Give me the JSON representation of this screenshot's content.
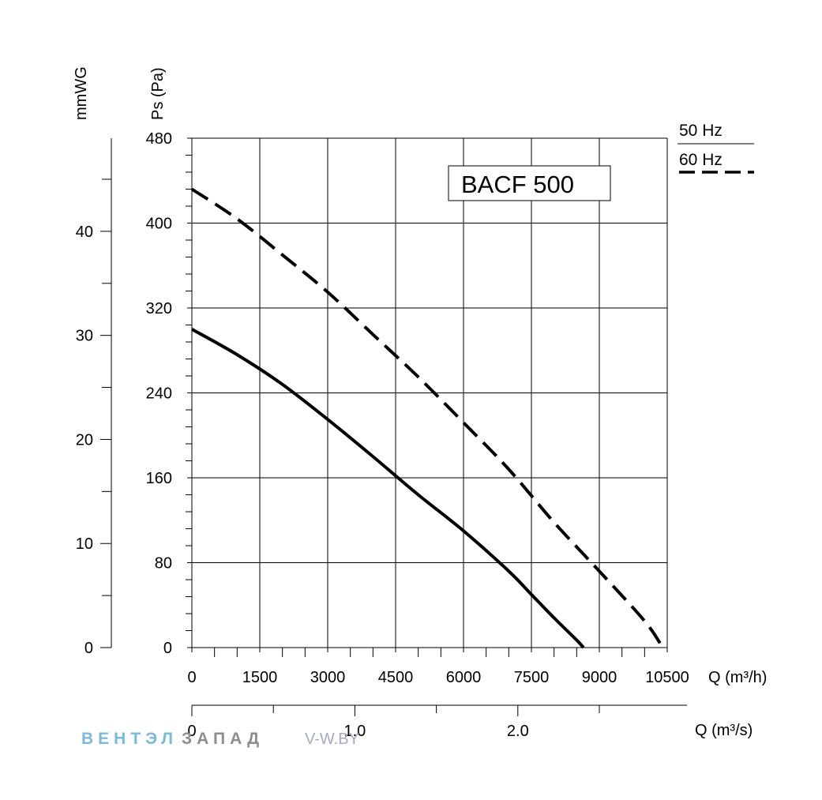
{
  "chart_data": {
    "type": "line",
    "title": "BACF 500",
    "xlabel": "Q (m³/h)",
    "xlabel_secondary": "Q (m³/s)",
    "ylabel": "Ps (Pa)",
    "ylabel_secondary": "mmWG",
    "xlim": [
      0,
      10500
    ],
    "ylim": [
      0,
      480
    ],
    "x_ticks": [
      0,
      1500,
      3000,
      4500,
      6000,
      7500,
      9000,
      10500
    ],
    "x_tick_labels": [
      "0",
      "1500",
      "3000",
      "4500",
      "6000",
      "7500",
      "9000",
      "10500"
    ],
    "y_ticks": [
      0,
      80,
      160,
      240,
      320,
      400,
      480
    ],
    "y_tick_labels": [
      "0",
      "80",
      "160",
      "240",
      "320",
      "400",
      "480"
    ],
    "secondary_x": {
      "ticks": [
        0,
        1.0,
        2.0
      ],
      "labels": [
        "0",
        "1.0",
        "2.0"
      ],
      "minor_ticks": [
        0.5,
        1.5,
        2.5
      ]
    },
    "secondary_y": {
      "ticks": [
        0,
        10,
        20,
        30,
        40
      ],
      "labels": [
        "0",
        "10",
        "20",
        "30",
        "40"
      ],
      "minor_ticks": [
        5,
        15,
        25,
        35,
        45
      ]
    },
    "grid": true,
    "legend_position": "top-right",
    "series": [
      {
        "name": "50 Hz",
        "style": "solid",
        "x": [
          0,
          1000,
          2000,
          3000,
          4000,
          5000,
          6000,
          7000,
          7500,
          8000,
          8500,
          8650
        ],
        "y": [
          300,
          276,
          248,
          215,
          180,
          144,
          110,
          72,
          50,
          28,
          7,
          0
        ]
      },
      {
        "name": "60 Hz",
        "style": "dashed",
        "x": [
          0,
          1000,
          2000,
          3000,
          4000,
          5000,
          6000,
          7000,
          8000,
          9000,
          10000,
          10400
        ],
        "y": [
          432,
          404,
          370,
          335,
          295,
          255,
          212,
          168,
          118,
          72,
          25,
          0
        ]
      }
    ]
  },
  "watermark": {
    "brand_blue": "ВЕНТЭЛ",
    "brand_gray": "ЗАПАД",
    "url": "V-W.BY"
  }
}
